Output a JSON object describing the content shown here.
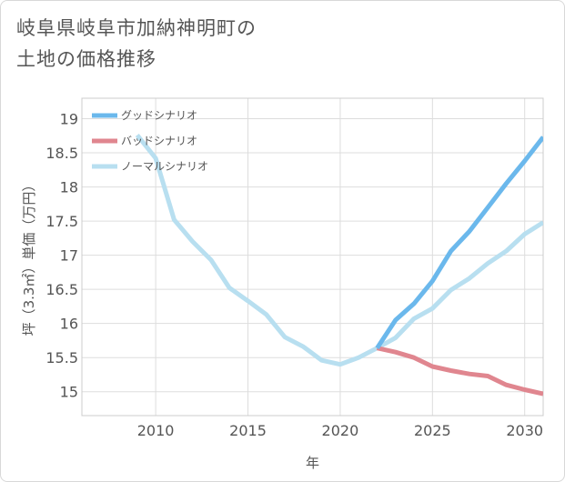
{
  "title_line1": "岐阜県岐阜市加納神明町の",
  "title_line2": "土地の価格推移",
  "chart_data": {
    "type": "line",
    "title": "岐阜県岐阜市加納神明町の土地の価格推移",
    "xlabel": "年",
    "ylabel": "坪（3.3㎡）単価（万円）",
    "xlim": [
      2006,
      2031
    ],
    "ylim": [
      14.65,
      19.3
    ],
    "xticks": [
      2010,
      2015,
      2020,
      2025,
      2030
    ],
    "yticks": [
      15,
      15.5,
      16,
      16.5,
      17,
      17.5,
      18,
      18.5,
      19
    ],
    "series": [
      {
        "name": "グッドシナリオ",
        "color": "#6bb8ec",
        "x": [
          2022,
          2023,
          2024,
          2025,
          2026,
          2027,
          2028,
          2029,
          2030,
          2031
        ],
        "y": [
          15.64,
          16.05,
          16.29,
          16.62,
          17.06,
          17.35,
          17.7,
          18.05,
          18.38,
          18.73
        ]
      },
      {
        "name": "バッドシナリオ",
        "color": "#e0868f",
        "x": [
          2022,
          2023,
          2024,
          2025,
          2026,
          2027,
          2028,
          2029,
          2030,
          2031
        ],
        "y": [
          15.64,
          15.58,
          15.5,
          15.37,
          15.31,
          15.26,
          15.23,
          15.1,
          15.03,
          14.97
        ]
      },
      {
        "name": "ノーマルシナリオ",
        "color": "#b8dff0",
        "x": [
          2009,
          2010,
          2011,
          2012,
          2013,
          2014,
          2015,
          2016,
          2017,
          2018,
          2019,
          2020,
          2021,
          2022,
          2023,
          2024,
          2025,
          2026,
          2027,
          2028,
          2029,
          2030,
          2031
        ],
        "y": [
          18.76,
          18.42,
          17.52,
          17.2,
          16.93,
          16.52,
          16.33,
          16.13,
          15.8,
          15.66,
          15.46,
          15.4,
          15.5,
          15.64,
          15.79,
          16.07,
          16.22,
          16.49,
          16.66,
          16.88,
          17.06,
          17.31,
          17.48
        ]
      }
    ]
  }
}
